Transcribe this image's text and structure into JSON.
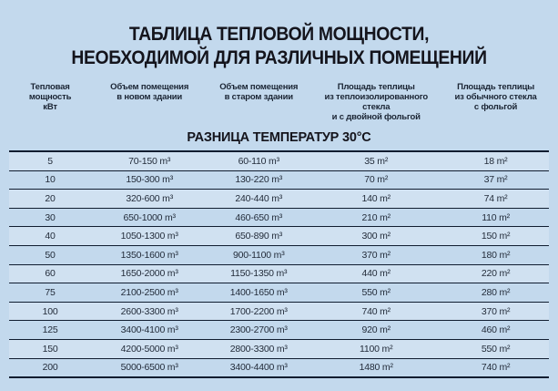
{
  "title": {
    "line1": "ТАБЛИЦА ТЕПЛОВОЙ МОЩНОСТИ,",
    "line2": "НЕОБХОДИМОЙ ДЛЯ РАЗЛИЧНЫХ ПОМЕЩЕНИЙ"
  },
  "chart_data": {
    "type": "table",
    "title": "ТАБЛИЦА ТЕПЛОВОЙ МОЩНОСТИ, НЕОБХОДИМОЙ ДЛЯ РАЗЛИЧНЫХ ПОМЕЩЕНИЙ",
    "subtitle": "РАЗНИЦА ТЕМПЕРАТУР 30°С",
    "columns": [
      "Тепловая мощность\nкВт",
      "Объем помещения\nв новом здании",
      "Объем помещения\nв старом здании",
      "Площадь теплицы\nиз теплоизолированного стекла\nи с двойной фольгой",
      "Площадь теплицы\nиз обычного стекла\nс фольгой"
    ],
    "rows": [
      [
        "5",
        "70-150 m³",
        "60-110 m³",
        "35 m²",
        "18 m²"
      ],
      [
        "10",
        "150-300 m³",
        "130-220 m³",
        "70 m²",
        "37 m²"
      ],
      [
        "20",
        "320-600 m³",
        "240-440 m³",
        "140 m²",
        "74 m²"
      ],
      [
        "30",
        "650-1000 m³",
        "460-650 m³",
        "210 m²",
        "110 m²"
      ],
      [
        "40",
        "1050-1300 m³",
        "650-890 m³",
        "300 m²",
        "150 m²"
      ],
      [
        "50",
        "1350-1600 m³",
        "900-1100 m³",
        "370 m²",
        "180 m²"
      ],
      [
        "60",
        "1650-2000 m³",
        "1150-1350 m³",
        "440 m²",
        "220 m²"
      ],
      [
        "75",
        "2100-2500 m³",
        "1400-1650 m³",
        "550 m²",
        "280 m²"
      ],
      [
        "100",
        "2600-3300 m³",
        "1700-2200 m³",
        "740 m²",
        "370 m²"
      ],
      [
        "125",
        "3400-4100 m³",
        "2300-2700 m³",
        "920 m²",
        "460 m²"
      ],
      [
        "150",
        "4200-5000 m³",
        "2800-3300 m³",
        "1100 m²",
        "550 m²"
      ],
      [
        "200",
        "5000-6500 m³",
        "3400-4400 m³",
        "1480 m²",
        "740 m²"
      ]
    ]
  },
  "colors": {
    "background": "#c3d9ed",
    "line": "#101d30",
    "title_text": "#14141c",
    "header_text": "#1a2433",
    "cell_text": "#232c3a"
  }
}
